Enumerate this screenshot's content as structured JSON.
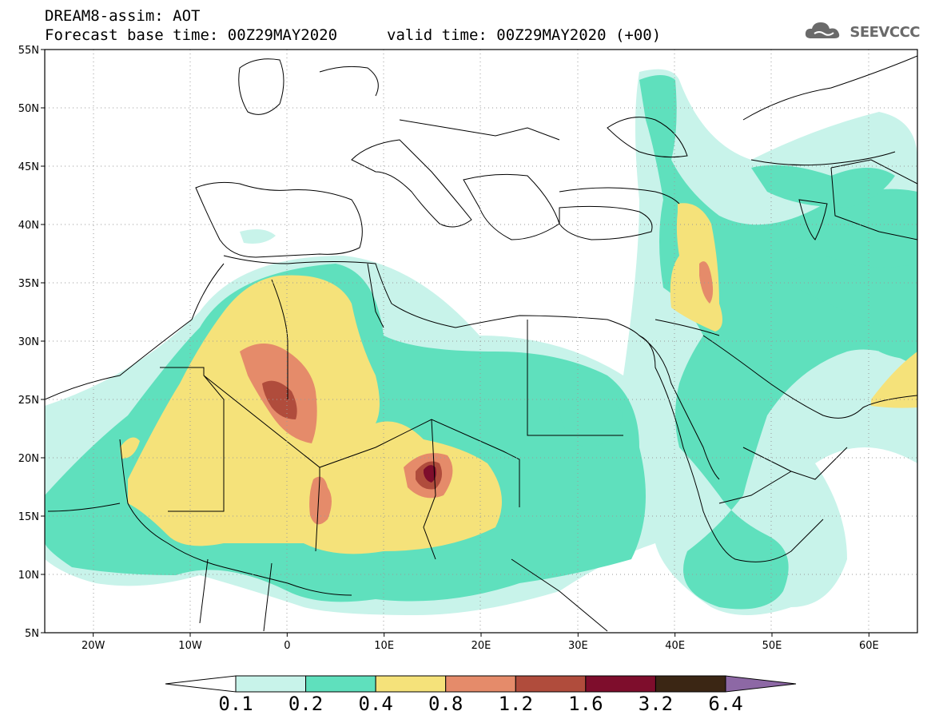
{
  "header": {
    "title": "DREAM8-assim: AOT",
    "base_time": "Forecast base time: 00Z29MAY2020",
    "valid_time": "valid time: 00Z29MAY2020 (+00)"
  },
  "logo": {
    "text": "SEEVCCC",
    "icon": "cloud-icon"
  },
  "map": {
    "lon_range": [
      -25,
      65
    ],
    "lat_range": [
      5,
      55
    ],
    "lon_ticks": [
      "20W",
      "10W",
      "0",
      "10E",
      "20E",
      "30E",
      "40E",
      "50E",
      "60E"
    ],
    "lat_ticks": [
      "55N",
      "50N",
      "45N",
      "40N",
      "35N",
      "30N",
      "25N",
      "20N",
      "15N",
      "10N",
      "5N"
    ],
    "grid": "dotted"
  },
  "colorbar": {
    "levels": [
      "0.1",
      "0.2",
      "0.4",
      "0.8",
      "1.2",
      "1.6",
      "3.2",
      "6.4"
    ],
    "colors": [
      "#c8f3ea",
      "#5fe0bd",
      "#f5e27a",
      "#e58b6a",
      "#b04c3c",
      "#7e0d2c",
      "#3b2614",
      "#8d68a5"
    ],
    "under_color": "#ffffff",
    "over_color": "#8d68a5"
  }
}
